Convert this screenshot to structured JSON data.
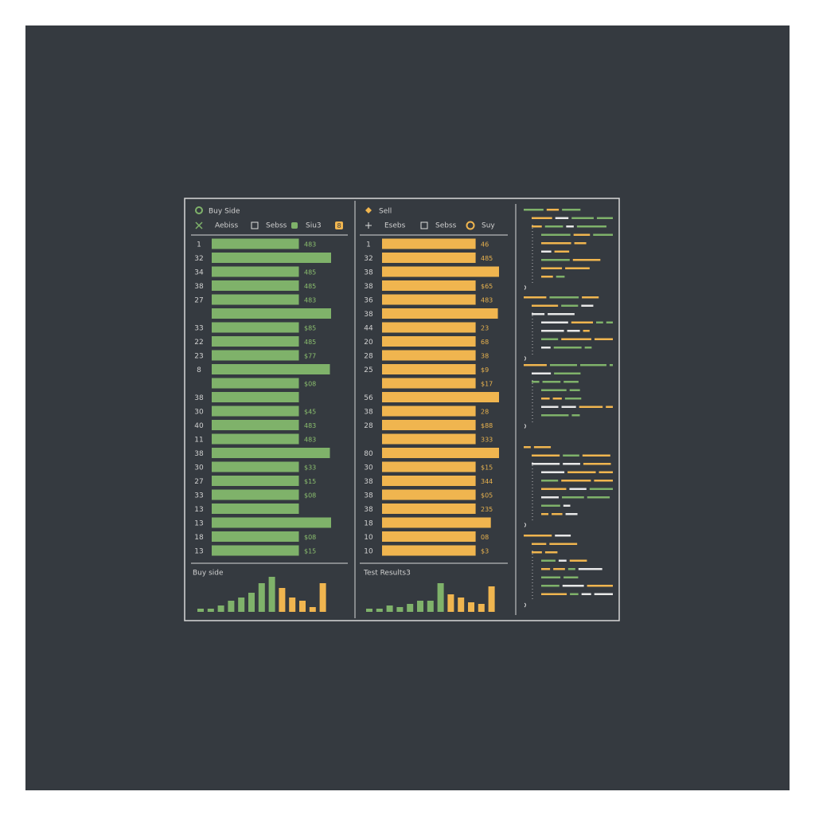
{
  "buy_panel": {
    "title": "Buy Side",
    "columns": [
      "Aebiss",
      "Sebss",
      "Siu3"
    ],
    "badge": "8",
    "depth_range": [
      0,
      100
    ],
    "rows": [
      {
        "num": "1",
        "value": "483",
        "depth": 73
      },
      {
        "num": "32",
        "value": null,
        "depth": 100
      },
      {
        "num": "34",
        "value": "485",
        "depth": 73
      },
      {
        "num": "38",
        "value": "485",
        "depth": 73
      },
      {
        "num": "27",
        "value": "483",
        "depth": 73
      },
      {
        "num": null,
        "value": null,
        "depth": 100
      },
      {
        "num": "33",
        "value": "$85",
        "depth": 73
      },
      {
        "num": "22",
        "value": "485",
        "depth": 73
      },
      {
        "num": "23",
        "value": "$77",
        "depth": 73
      },
      {
        "num": "8",
        "value": null,
        "depth": 99
      },
      {
        "num": null,
        "value": "$08",
        "depth": 73
      },
      {
        "num": "38",
        "value": null,
        "depth": 73
      },
      {
        "num": "30",
        "value": "$45",
        "depth": 73
      },
      {
        "num": "40",
        "value": "483",
        "depth": 73
      },
      {
        "num": "11",
        "value": "483",
        "depth": 73
      },
      {
        "num": "38",
        "value": null,
        "depth": 99
      },
      {
        "num": "30",
        "value": "$33",
        "depth": 73
      },
      {
        "num": "27",
        "value": "$15",
        "depth": 73
      },
      {
        "num": "33",
        "value": "$08",
        "depth": 73
      },
      {
        "num": "13",
        "value": null,
        "depth": 73
      },
      {
        "num": "13",
        "value": null,
        "depth": 100
      },
      {
        "num": "18",
        "value": "$08",
        "depth": 73
      },
      {
        "num": "13",
        "value": "$15",
        "depth": 73
      }
    ],
    "footer_title": "Buy side",
    "histogram_range": [
      0,
      50
    ],
    "histogram": [
      {
        "value": 4,
        "color": "#7fb26a"
      },
      {
        "value": 4,
        "color": "#7fb26a"
      },
      {
        "value": 8,
        "color": "#7fb26a"
      },
      {
        "value": 14,
        "color": "#7fb26a"
      },
      {
        "value": 18,
        "color": "#7fb26a"
      },
      {
        "value": 24,
        "color": "#7fb26a"
      },
      {
        "value": 36,
        "color": "#7fb26a"
      },
      {
        "value": 44,
        "color": "#7fb26a"
      },
      {
        "value": 30,
        "color": "#f0b54f"
      },
      {
        "value": 18,
        "color": "#f0b54f"
      },
      {
        "value": 14,
        "color": "#f0b54f"
      },
      {
        "value": 6,
        "color": "#f0b54f"
      },
      {
        "value": 36,
        "color": "#f0b54f"
      }
    ]
  },
  "sell_panel": {
    "title": "Sell",
    "columns": [
      "Esebs",
      "Sebss",
      "Suy"
    ],
    "depth_range": [
      0,
      100
    ],
    "rows": [
      {
        "num": "1",
        "value": "46",
        "depth": 80
      },
      {
        "num": "32",
        "value": "485",
        "depth": 80
      },
      {
        "num": "38",
        "value": null,
        "depth": 100
      },
      {
        "num": "38",
        "value": "$65",
        "depth": 80
      },
      {
        "num": "36",
        "value": "483",
        "depth": 80
      },
      {
        "num": "38",
        "value": null,
        "depth": 99
      },
      {
        "num": "44",
        "value": "23",
        "depth": 80
      },
      {
        "num": "20",
        "value": "68",
        "depth": 80
      },
      {
        "num": "28",
        "value": "38",
        "depth": 80
      },
      {
        "num": "25",
        "value": "$9",
        "depth": 80
      },
      {
        "num": null,
        "value": "$17",
        "depth": 80
      },
      {
        "num": "56",
        "value": null,
        "depth": 100
      },
      {
        "num": "38",
        "value": "28",
        "depth": 80
      },
      {
        "num": "28",
        "value": "$88",
        "depth": 80
      },
      {
        "num": null,
        "value": "333",
        "depth": 80
      },
      {
        "num": "80",
        "value": null,
        "depth": 100
      },
      {
        "num": "30",
        "value": "$15",
        "depth": 80
      },
      {
        "num": "38",
        "value": "344",
        "depth": 80
      },
      {
        "num": "38",
        "value": "$05",
        "depth": 80
      },
      {
        "num": "38",
        "value": "235",
        "depth": 80
      },
      {
        "num": "18",
        "value": null,
        "depth": 93
      },
      {
        "num": "10",
        "value": "08",
        "depth": 80
      },
      {
        "num": "10",
        "value": "$3",
        "depth": 80
      }
    ],
    "footer_title": "Test Results3",
    "histogram_range": [
      0,
      50
    ],
    "histogram": [
      {
        "value": 4,
        "color": "#7fb26a"
      },
      {
        "value": 4,
        "color": "#7fb26a"
      },
      {
        "value": 8,
        "color": "#7fb26a"
      },
      {
        "value": 6,
        "color": "#7fb26a"
      },
      {
        "value": 10,
        "color": "#7fb26a"
      },
      {
        "value": 14,
        "color": "#7fb26a"
      },
      {
        "value": 14,
        "color": "#7fb26a"
      },
      {
        "value": 36,
        "color": "#7fb26a"
      },
      {
        "value": 22,
        "color": "#f0b54f"
      },
      {
        "value": 18,
        "color": "#f0b54f"
      },
      {
        "value": 12,
        "color": "#f0b54f"
      },
      {
        "value": 10,
        "color": "#f0b54f"
      },
      {
        "value": 32,
        "color": "#f0b54f"
      }
    ]
  }
}
